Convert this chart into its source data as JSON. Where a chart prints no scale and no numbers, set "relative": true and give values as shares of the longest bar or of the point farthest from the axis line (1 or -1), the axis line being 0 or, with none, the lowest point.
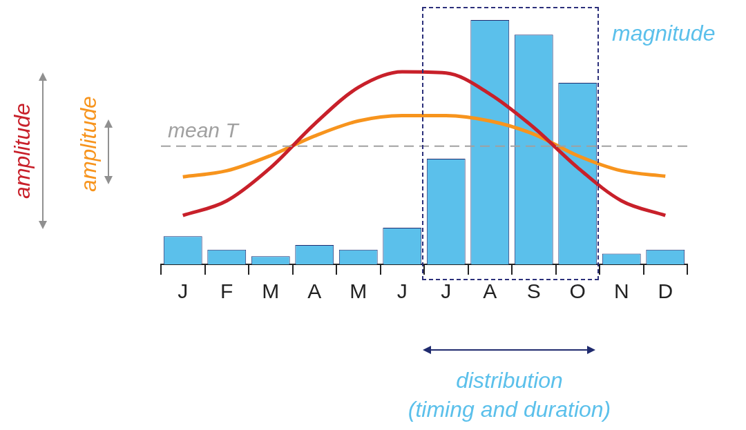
{
  "chart_data": {
    "type": "bar",
    "relative": true,
    "categories": [
      "J",
      "F",
      "M",
      "A",
      "M",
      "J",
      "J",
      "A",
      "S",
      "O",
      "N",
      "D"
    ],
    "series": [
      {
        "color": "#5bc0eb",
        "values": [
          0.115,
          0.06,
          0.033,
          0.079,
          0.06,
          0.15,
          0.432,
          1,
          0.94,
          0.743,
          0.044,
          0.06
        ]
      },
      {
        "type": "line",
        "color": "#c8202a",
        "values": [
          0.2,
          0.26,
          0.396,
          0.574,
          0.724,
          0.788,
          0.783,
          0.697,
          0.56,
          0.396,
          0.26,
          0.2
        ]
      },
      {
        "type": "line",
        "color": "#f7941d",
        "values": [
          0.358,
          0.383,
          0.445,
          0.525,
          0.587,
          0.609,
          0.609,
          0.587,
          0.533,
          0.445,
          0.383,
          0.361
        ]
      }
    ],
    "ref_lines": [
      {
        "axis": "y",
        "value": 0.484,
        "label": "mean T",
        "color": "#a0a0a0",
        "line_style": "dashed"
      }
    ],
    "annotations": [
      "amplitude",
      "amplitude",
      "magnitude",
      "distribution (timing and duration)"
    ],
    "grid": false,
    "legend": false
  }
}
